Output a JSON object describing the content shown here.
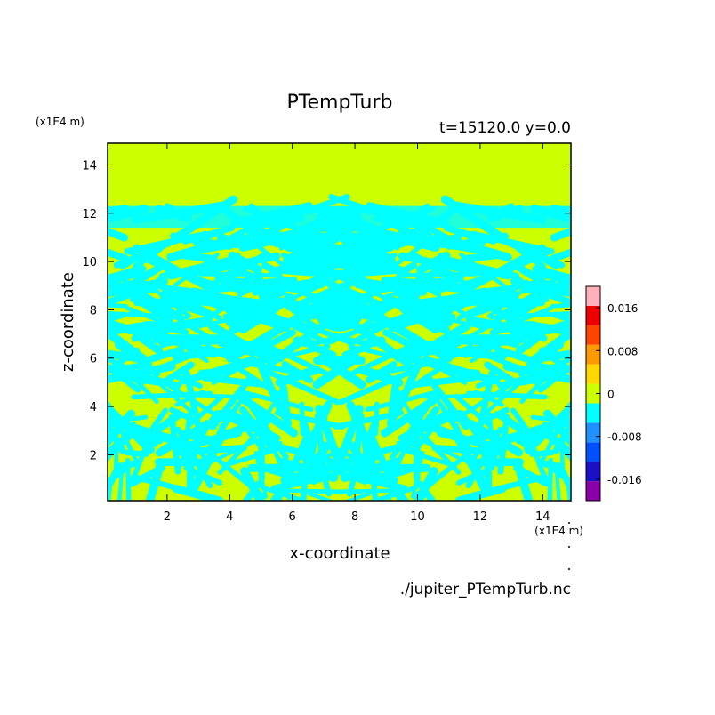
{
  "chart_data": {
    "type": "heatmap",
    "title": "PTempTurb",
    "subtitle": "t=15120.0 y=0.0",
    "xlabel": "x-coordinate",
    "ylabel": "z-coordinate",
    "x_unit": "(x1E4 m)",
    "y_unit": "(x1E4 m)",
    "source_file": "./jupiter_PTempTurb.nc",
    "xlim": [
      0.1,
      14.9
    ],
    "ylim": [
      0.1,
      14.9
    ],
    "x_ticks": [
      "2",
      "4",
      "6",
      "8",
      "10",
      "12",
      "14"
    ],
    "y_ticks": [
      "2",
      "4",
      "6",
      "8",
      "10",
      "12",
      "14"
    ],
    "colorbar": {
      "levels": [
        -0.02,
        -0.016,
        -0.012,
        -0.008,
        -0.004,
        0.0,
        0.004,
        0.008,
        0.012,
        0.016,
        0.02
      ],
      "colors": [
        "#8a00a8",
        "#1a10c8",
        "#0050ff",
        "#1e90ff",
        "#00ffff",
        "#ccff00",
        "#ffd700",
        "#ff9900",
        "#ff4400",
        "#ee0000",
        "#ffb0b8"
      ],
      "tick_labels": [
        "0.016",
        "0.008",
        "0",
        "-0.008",
        "-0.016"
      ],
      "tick_values": [
        0.016,
        0.008,
        0.0,
        -0.008,
        -0.016
      ]
    },
    "field_description_values": {
      "dominant_positive_value": 0.002,
      "dominant_negative_value": -0.002,
      "upper_uniform_region_z_min": 12.3
    }
  }
}
